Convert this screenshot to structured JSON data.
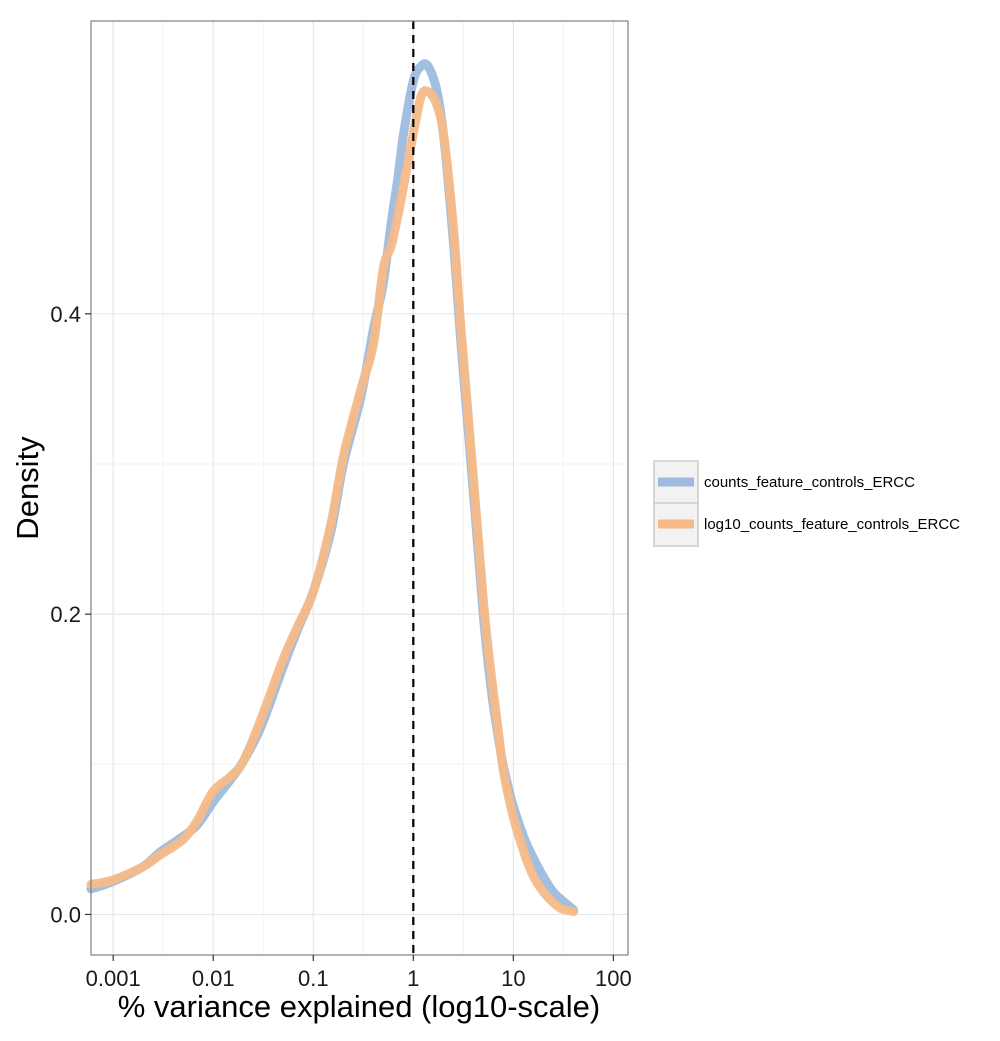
{
  "chart_data": {
    "type": "line",
    "title": "",
    "xlabel": "% variance explained (log10-scale)",
    "ylabel": "Density",
    "x_scale": "log10",
    "xlim": [
      0.0006,
      140
    ],
    "ylim": [
      -0.027,
      0.595
    ],
    "x_ticks": [
      {
        "value": 0.001,
        "label": "0.001"
      },
      {
        "value": 0.01,
        "label": "0.01"
      },
      {
        "value": 0.1,
        "label": "0.1"
      },
      {
        "value": 1,
        "label": "1"
      },
      {
        "value": 10,
        "label": "10"
      },
      {
        "value": 100,
        "label": "100"
      }
    ],
    "y_ticks": [
      {
        "value": 0.0,
        "label": "0.0"
      },
      {
        "value": 0.2,
        "label": "0.2"
      },
      {
        "value": 0.4,
        "label": "0.4"
      }
    ],
    "grid": true,
    "reference_line": {
      "x": 1,
      "style": "dashed",
      "color": "#000000"
    },
    "legend": {
      "position": "right"
    },
    "series": [
      {
        "name": "counts_feature_controls_ERCC",
        "color": "#9dbbdf",
        "x": [
          0.0006,
          0.001,
          0.002,
          0.003,
          0.005,
          0.007,
          0.01,
          0.015,
          0.02,
          0.03,
          0.05,
          0.07,
          0.1,
          0.15,
          0.2,
          0.3,
          0.4,
          0.5,
          0.6,
          0.7,
          0.8,
          1.0,
          1.2,
          1.4,
          1.7,
          2.0,
          2.5,
          3.0,
          4.0,
          5.0,
          6.0,
          7.0,
          8.0,
          10,
          13,
          16,
          20,
          25,
          30,
          40
        ],
        "y": [
          0.017,
          0.022,
          0.032,
          0.042,
          0.052,
          0.06,
          0.075,
          0.09,
          0.102,
          0.125,
          0.165,
          0.19,
          0.215,
          0.255,
          0.3,
          0.345,
          0.39,
          0.42,
          0.46,
          0.49,
          0.52,
          0.555,
          0.565,
          0.565,
          0.55,
          0.52,
          0.45,
          0.38,
          0.28,
          0.2,
          0.15,
          0.12,
          0.098,
          0.072,
          0.05,
          0.037,
          0.025,
          0.015,
          0.01,
          0.003
        ]
      },
      {
        "name": "log10_counts_feature_controls_ERCC",
        "color": "#f6bb88",
        "x": [
          0.0006,
          0.001,
          0.002,
          0.003,
          0.005,
          0.007,
          0.01,
          0.015,
          0.02,
          0.03,
          0.05,
          0.07,
          0.1,
          0.15,
          0.2,
          0.3,
          0.4,
          0.5,
          0.6,
          0.7,
          0.8,
          1.0,
          1.2,
          1.4,
          1.7,
          2.0,
          2.5,
          3.0,
          4.0,
          5.0,
          6.0,
          7.0,
          8.0,
          10,
          13,
          16,
          20,
          25,
          30,
          40
        ],
        "y": [
          0.02,
          0.023,
          0.032,
          0.04,
          0.05,
          0.063,
          0.082,
          0.092,
          0.102,
          0.13,
          0.17,
          0.192,
          0.215,
          0.26,
          0.305,
          0.35,
          0.38,
          0.43,
          0.445,
          0.465,
          0.485,
          0.52,
          0.545,
          0.548,
          0.54,
          0.52,
          0.46,
          0.39,
          0.29,
          0.21,
          0.16,
          0.125,
          0.095,
          0.065,
          0.04,
          0.025,
          0.015,
          0.008,
          0.004,
          0.002
        ]
      }
    ]
  }
}
